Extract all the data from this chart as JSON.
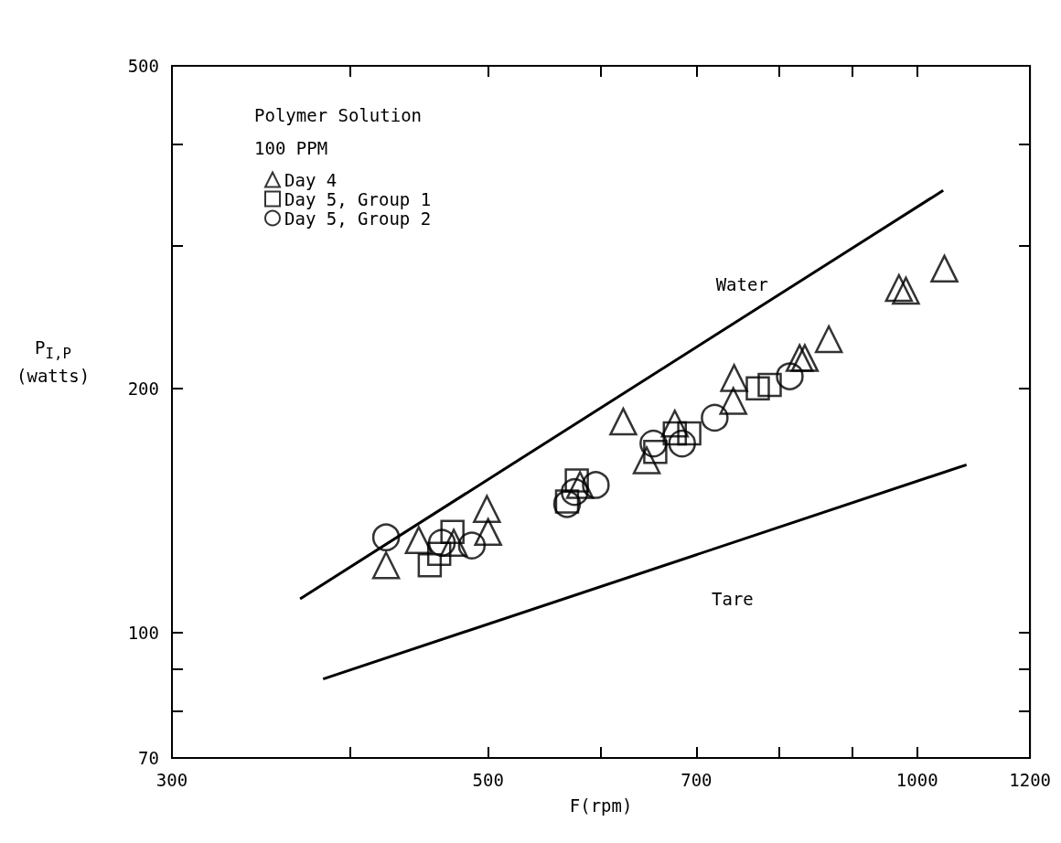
{
  "chart_data": {
    "type": "scatter",
    "xlabel": "F(rpm)",
    "ylabel": "P$_{I,P}$\n(watts)",
    "legend_title": "Polymer Solution\n100 PPM",
    "log": "xy",
    "grid": false,
    "legend": "top left",
    "xlim": [
      300,
      1200
    ],
    "xticks": [
      300,
      {
        "value": 400,
        "label": null
      },
      500,
      {
        "value": 600,
        "label": null
      },
      700,
      {
        "value": 800,
        "label": null
      },
      {
        "value": 900,
        "label": null
      },
      1000,
      1200
    ],
    "ylim": [
      70,
      500
    ],
    "yticks": [
      70,
      {
        "value": 80,
        "label": null
      },
      {
        "value": 90,
        "label": null
      },
      100,
      200,
      {
        "value": 300,
        "label": null
      },
      {
        "value": 400,
        "label": null
      },
      500
    ],
    "series": [
      {
        "name": "Day 4",
        "marker": "triangle",
        "color": "#000000",
        "x": [
          424,
          447,
          473,
          499,
          500,
          580,
          622,
          646,
          676,
          744,
          743,
          827,
          834,
          867,
          971,
          982,
          1045
        ],
        "values": [
          121,
          130,
          129,
          142,
          133,
          152,
          182,
          163,
          181,
          206,
          193,
          218,
          218,
          230,
          266,
          264,
          281
        ]
      },
      {
        "name": "Day 5, Group 1",
        "marker": "square",
        "color": "#000000",
        "x": [
          455,
          462,
          472,
          577,
          568,
          655,
          676,
          692,
          773,
          788
        ],
        "values": [
          121,
          125,
          133,
          154,
          145,
          167,
          176,
          176,
          200,
          202
        ]
      },
      {
        "name": "Day 5, Group 2",
        "marker": "circle",
        "color": "#000000",
        "x": [
          424,
          464,
          487,
          568,
          575,
          595,
          653,
          684,
          721,
          814
        ],
        "values": [
          131,
          129,
          128,
          144,
          149,
          152,
          171,
          171,
          184,
          207
        ]
      },
      {
        "name": "Water",
        "type": "line",
        "marker": "none",
        "color": "#000000",
        "x": [
          369,
          1043
        ],
        "values": [
          110,
          351
        ]
      },
      {
        "name": "Tare",
        "type": "line",
        "marker": "none",
        "color": "#000000",
        "x": [
          383,
          1083
        ],
        "values": [
          87.6,
          161
        ]
      }
    ]
  }
}
